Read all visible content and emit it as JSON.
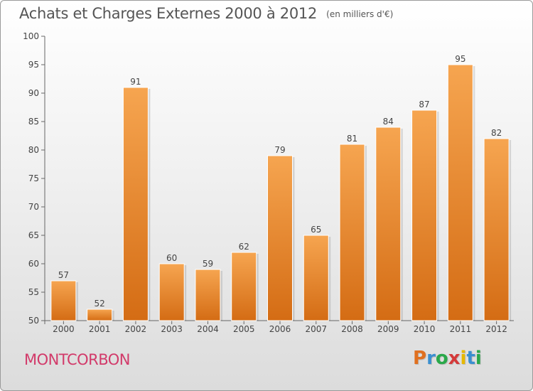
{
  "title": "Achats et Charges Externes 2000 à 2012",
  "subtitle": "(en milliers d'€)",
  "commune": "MONTCORBON",
  "brand": {
    "letters": [
      "P",
      "r",
      "o",
      "x",
      "i",
      "t",
      "i"
    ],
    "colors": [
      "#e07020",
      "#3a8fd0",
      "#2aa84a",
      "#d43a3a",
      "#e6b800",
      "#3a8fd0",
      "#2aa84a"
    ]
  },
  "chart_data": {
    "type": "bar",
    "title": "Achats et Charges Externes 2000 à 2012",
    "subtitle": "(en milliers d'€)",
    "xlabel": "",
    "ylabel": "",
    "categories": [
      "2000",
      "2001",
      "2002",
      "2003",
      "2004",
      "2005",
      "2006",
      "2007",
      "2008",
      "2009",
      "2010",
      "2011",
      "2012"
    ],
    "values": [
      57,
      52,
      91,
      60,
      59,
      62,
      79,
      65,
      81,
      84,
      87,
      95,
      82
    ],
    "ylim": [
      50,
      100
    ],
    "yticks": [
      50,
      55,
      60,
      65,
      70,
      75,
      80,
      85,
      90,
      95,
      100
    ],
    "grid": false,
    "legend": "none",
    "bar_color": "#f0902e"
  }
}
